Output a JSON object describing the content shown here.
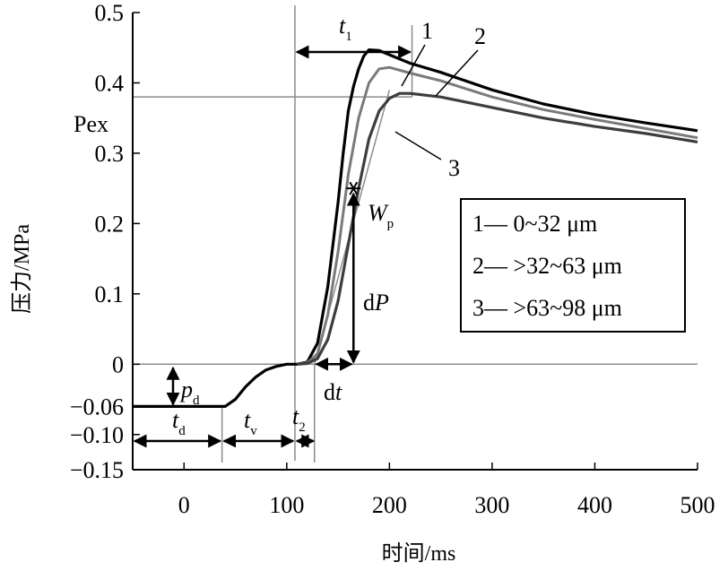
{
  "chart_data": {
    "type": "line",
    "xlabel": "时间/ms",
    "ylabel": "压力/MPa",
    "xlim": [
      -50,
      500
    ],
    "ylim": [
      -0.15,
      0.5
    ],
    "x_ticks": [
      0,
      100,
      200,
      300,
      400,
      500
    ],
    "x_tick_labels": [
      "0",
      "100",
      "200",
      "300",
      "400",
      "500"
    ],
    "y_ticks": [
      -0.15,
      -0.1,
      -0.06,
      0,
      0.1,
      0.2,
      0.3,
      0.4,
      0.5
    ],
    "y_tick_labels": [
      "−0.15",
      "−0.10",
      "−0.06",
      "0",
      "0.1",
      "0.2",
      "0.3",
      "0.4",
      "0.5"
    ],
    "grid": false,
    "colors": {
      "s1": "#000000",
      "s2": "#7a7a7a",
      "s3": "#3d3d3d",
      "ref": "#8c8c8c"
    },
    "series": [
      {
        "name": "1",
        "values": [
          [
            -50,
            -0.06
          ],
          [
            40,
            -0.06
          ],
          [
            50,
            -0.05
          ],
          [
            60,
            -0.032
          ],
          [
            70,
            -0.018
          ],
          [
            80,
            -0.008
          ],
          [
            90,
            -0.003
          ],
          [
            100,
            0
          ],
          [
            110,
            0
          ],
          [
            120,
            0.003
          ],
          [
            130,
            0.03
          ],
          [
            140,
            0.11
          ],
          [
            150,
            0.23
          ],
          [
            155,
            0.3
          ],
          [
            160,
            0.36
          ],
          [
            165,
            0.395
          ],
          [
            170,
            0.42
          ],
          [
            175,
            0.438
          ],
          [
            180,
            0.447
          ],
          [
            190,
            0.446
          ],
          [
            200,
            0.44
          ],
          [
            220,
            0.428
          ],
          [
            250,
            0.415
          ],
          [
            300,
            0.39
          ],
          [
            350,
            0.37
          ],
          [
            400,
            0.355
          ],
          [
            450,
            0.343
          ],
          [
            500,
            0.332
          ]
        ]
      },
      {
        "name": "2",
        "values": [
          [
            110,
            0
          ],
          [
            120,
            0.002
          ],
          [
            130,
            0.015
          ],
          [
            140,
            0.07
          ],
          [
            150,
            0.16
          ],
          [
            160,
            0.27
          ],
          [
            170,
            0.35
          ],
          [
            180,
            0.4
          ],
          [
            190,
            0.42
          ],
          [
            200,
            0.422
          ],
          [
            220,
            0.414
          ],
          [
            250,
            0.403
          ],
          [
            300,
            0.38
          ],
          [
            350,
            0.362
          ],
          [
            400,
            0.348
          ],
          [
            450,
            0.335
          ],
          [
            500,
            0.322
          ]
        ]
      },
      {
        "name": "3",
        "values": [
          [
            110,
            0
          ],
          [
            120,
            0.001
          ],
          [
            130,
            0.008
          ],
          [
            140,
            0.035
          ],
          [
            150,
            0.09
          ],
          [
            160,
            0.17
          ],
          [
            170,
            0.25
          ],
          [
            180,
            0.32
          ],
          [
            190,
            0.36
          ],
          [
            200,
            0.378
          ],
          [
            210,
            0.385
          ],
          [
            220,
            0.385
          ],
          [
            250,
            0.38
          ],
          [
            300,
            0.365
          ],
          [
            350,
            0.35
          ],
          [
            400,
            0.338
          ],
          [
            450,
            0.328
          ],
          [
            500,
            0.316
          ]
        ]
      }
    ],
    "legend": {
      "placement": "right",
      "entries": [
        "1— 0~32 μm",
        "2— >32~63 μm",
        "3— >63~98 μm"
      ]
    },
    "annotations": {
      "pex": "Pex",
      "pex_value": 0.38,
      "t1_var": "t",
      "t1_sub": "1",
      "t1_range": [
        108,
        222
      ],
      "t2_var": "t",
      "t2_sub": "2",
      "t2_range": [
        108,
        127
      ],
      "td_var": "t",
      "td_sub": "d",
      "td_range": [
        -50,
        37
      ],
      "tv_var": "t",
      "tv_sub": "v",
      "tv_range": [
        37,
        108
      ],
      "pd_var": "p",
      "pd_sub": "d",
      "wp_var": "W",
      "wp_sub": "p",
      "wp_point": [
        165,
        0.25
      ],
      "dp_var": "P",
      "dp_prefix": "d",
      "dt_var": "t",
      "dt_prefix": "d",
      "dt_range": [
        127,
        165
      ],
      "curve_labels": [
        "1",
        "2",
        "3"
      ]
    }
  }
}
